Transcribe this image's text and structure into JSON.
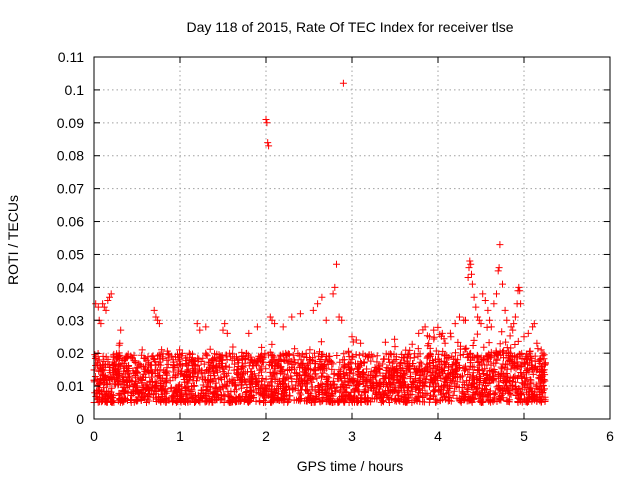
{
  "chart_data": {
    "type": "scatter",
    "title": "Day 118 of 2015, Rate Of TEC Index for receiver tlse",
    "xlabel": "GPS time / hours",
    "ylabel": "ROTI / TECUs",
    "xlim": [
      0,
      6
    ],
    "ylim": [
      0,
      0.11
    ],
    "xticks": [
      0,
      1,
      2,
      3,
      4,
      5,
      6
    ],
    "xtick_labels": [
      "0",
      "1",
      "2",
      "3",
      "4",
      "5",
      "6"
    ],
    "yticks": [
      0,
      0.01,
      0.02,
      0.03,
      0.04,
      0.05,
      0.06,
      0.07,
      0.08,
      0.09,
      0.1,
      0.11
    ],
    "ytick_labels": [
      "0",
      "0.01",
      "0.02",
      "0.03",
      "0.04",
      "0.05",
      "0.06",
      "0.07",
      "0.08",
      "0.09",
      "0.1",
      "0.11"
    ],
    "grid": true,
    "marker": "+",
    "color": "#ff0000",
    "dense_band": {
      "x_start": 0.0,
      "x_end": 5.25,
      "point_count": 2600,
      "typical_low": 0.005,
      "typical_high": 0.02
    },
    "series": [
      {
        "name": "ROTI",
        "points": [
          [
            0.02,
            0.035
          ],
          [
            0.05,
            0.034
          ],
          [
            0.06,
            0.03
          ],
          [
            0.08,
            0.029
          ],
          [
            0.1,
            0.035
          ],
          [
            0.12,
            0.034
          ],
          [
            0.14,
            0.033
          ],
          [
            0.16,
            0.036
          ],
          [
            0.18,
            0.037
          ],
          [
            0.2,
            0.038
          ],
          [
            0.3,
            0.023
          ],
          [
            0.31,
            0.027
          ],
          [
            0.7,
            0.033
          ],
          [
            0.72,
            0.031
          ],
          [
            0.74,
            0.03
          ],
          [
            0.76,
            0.029
          ],
          [
            1.2,
            0.029
          ],
          [
            1.23,
            0.027
          ],
          [
            1.3,
            0.028
          ],
          [
            1.5,
            0.027
          ],
          [
            1.52,
            0.029
          ],
          [
            1.55,
            0.026
          ],
          [
            1.8,
            0.026
          ],
          [
            1.9,
            0.028
          ],
          [
            2.0,
            0.091
          ],
          [
            2.01,
            0.09
          ],
          [
            2.02,
            0.084
          ],
          [
            2.03,
            0.083
          ],
          [
            2.05,
            0.031
          ],
          [
            2.07,
            0.03
          ],
          [
            2.1,
            0.029
          ],
          [
            2.2,
            0.028
          ],
          [
            2.3,
            0.031
          ],
          [
            2.4,
            0.032
          ],
          [
            2.55,
            0.033
          ],
          [
            2.6,
            0.035
          ],
          [
            2.65,
            0.037
          ],
          [
            2.7,
            0.03
          ],
          [
            2.78,
            0.038
          ],
          [
            2.8,
            0.04
          ],
          [
            2.82,
            0.047
          ],
          [
            2.85,
            0.031
          ],
          [
            2.88,
            0.03
          ],
          [
            2.9,
            0.102
          ],
          [
            3.0,
            0.025
          ],
          [
            3.05,
            0.024
          ],
          [
            3.1,
            0.023
          ],
          [
            3.5,
            0.022
          ],
          [
            3.9,
            0.025
          ],
          [
            3.85,
            0.028
          ],
          [
            3.95,
            0.027
          ],
          [
            4.05,
            0.026
          ],
          [
            4.15,
            0.025
          ],
          [
            4.2,
            0.029
          ],
          [
            4.25,
            0.031
          ],
          [
            4.3,
            0.03
          ],
          [
            4.32,
            0.03
          ],
          [
            4.35,
            0.043
          ],
          [
            4.36,
            0.046
          ],
          [
            4.37,
            0.048
          ],
          [
            4.38,
            0.047
          ],
          [
            4.39,
            0.044
          ],
          [
            4.4,
            0.041
          ],
          [
            4.42,
            0.037
          ],
          [
            4.44,
            0.034
          ],
          [
            4.46,
            0.031
          ],
          [
            4.48,
            0.03
          ],
          [
            4.5,
            0.029
          ],
          [
            4.52,
            0.038
          ],
          [
            4.55,
            0.036
          ],
          [
            4.58,
            0.033
          ],
          [
            4.6,
            0.03
          ],
          [
            4.62,
            0.028
          ],
          [
            4.65,
            0.035
          ],
          [
            4.68,
            0.038
          ],
          [
            4.7,
            0.045
          ],
          [
            4.71,
            0.046
          ],
          [
            4.72,
            0.053
          ],
          [
            4.75,
            0.041
          ],
          [
            4.78,
            0.033
          ],
          [
            4.8,
            0.03
          ],
          [
            4.85,
            0.028
          ],
          [
            4.88,
            0.029
          ],
          [
            4.9,
            0.031
          ],
          [
            4.92,
            0.035
          ],
          [
            4.93,
            0.039
          ],
          [
            4.94,
            0.04
          ],
          [
            4.95,
            0.039
          ],
          [
            4.96,
            0.035
          ],
          [
            5.0,
            0.025
          ],
          [
            5.05,
            0.026
          ],
          [
            5.1,
            0.028
          ],
          [
            5.12,
            0.029
          ],
          [
            5.15,
            0.023
          ],
          [
            5.2,
            0.021
          ],
          [
            5.22,
            0.02
          ]
        ]
      }
    ]
  }
}
